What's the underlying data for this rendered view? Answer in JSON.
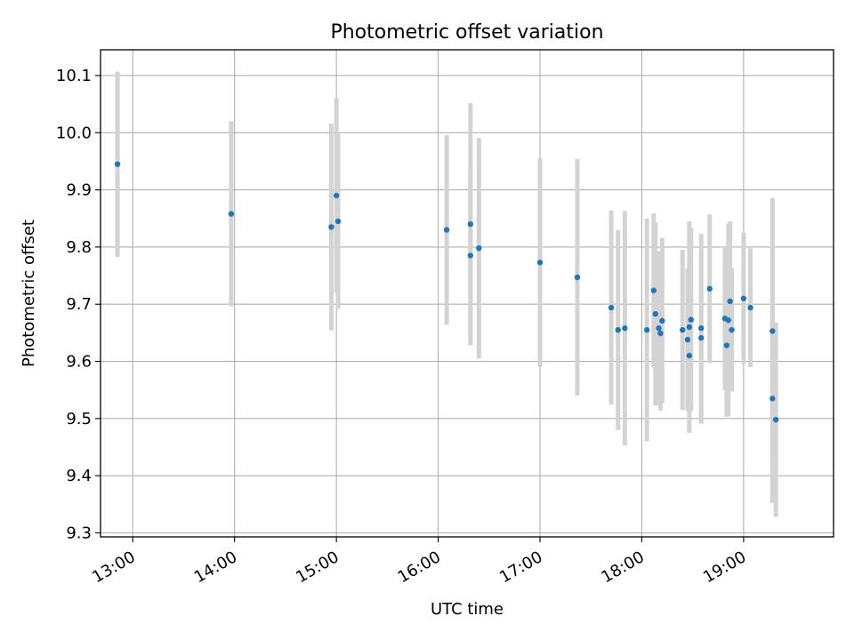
{
  "chart_data": {
    "type": "scatter",
    "title": "Photometric offset variation",
    "xlabel": "UTC time",
    "ylabel": "Photometric offset",
    "x_ticks": [
      "13:00",
      "14:00",
      "15:00",
      "16:00",
      "17:00",
      "18:00",
      "19:00"
    ],
    "y_ticks": [
      "9.3",
      "9.4",
      "9.5",
      "9.6",
      "9.7",
      "9.8",
      "9.9",
      "10.0",
      "10.1"
    ],
    "xlim": [
      "12:41",
      "19:53"
    ],
    "ylim": [
      9.293,
      10.145
    ],
    "grid": true,
    "errorbar_color": "#d3d3d3",
    "marker_color": "#1f77b4",
    "points": [
      {
        "x": "12:51",
        "y": 9.945,
        "err": 0.162
      },
      {
        "x": "13:58",
        "y": 9.858,
        "err": 0.162
      },
      {
        "x": "14:57",
        "y": 9.835,
        "err": 0.181
      },
      {
        "x": "15:00",
        "y": 9.89,
        "err": 0.17
      },
      {
        "x": "15:01",
        "y": 9.845,
        "err": 0.153
      },
      {
        "x": "16:05",
        "y": 9.83,
        "err": 0.166
      },
      {
        "x": "16:19",
        "y": 9.785,
        "err": 0.15
      },
      {
        "x": "16:19",
        "y": 9.84,
        "err": 0.212
      },
      {
        "x": "16:24",
        "y": 9.798,
        "err": 0.193
      },
      {
        "x": "17:00",
        "y": 9.773,
        "err": 0.183
      },
      {
        "x": "17:22",
        "y": 9.747,
        "err": 0.207
      },
      {
        "x": "17:42",
        "y": 9.694,
        "err": 0.17
      },
      {
        "x": "17:46",
        "y": 9.655,
        "err": 0.175
      },
      {
        "x": "17:50",
        "y": 9.658,
        "err": 0.205
      },
      {
        "x": "18:03",
        "y": 9.655,
        "err": 0.195
      },
      {
        "x": "18:07",
        "y": 9.724,
        "err": 0.135
      },
      {
        "x": "18:08",
        "y": 9.683,
        "err": 0.16
      },
      {
        "x": "18:10",
        "y": 9.658,
        "err": 0.135
      },
      {
        "x": "18:11",
        "y": 9.649,
        "err": 0.135
      },
      {
        "x": "18:12",
        "y": 9.671,
        "err": 0.145
      },
      {
        "x": "18:24",
        "y": 9.655,
        "err": 0.14
      },
      {
        "x": "18:27",
        "y": 9.638,
        "err": 0.125
      },
      {
        "x": "18:28",
        "y": 9.66,
        "err": 0.185
      },
      {
        "x": "18:28",
        "y": 9.61,
        "err": 0.135
      },
      {
        "x": "18:29",
        "y": 9.673,
        "err": 0.16
      },
      {
        "x": "18:35",
        "y": 9.641,
        "err": 0.15
      },
      {
        "x": "18:35",
        "y": 9.658,
        "err": 0.165
      },
      {
        "x": "18:40",
        "y": 9.727,
        "err": 0.13
      },
      {
        "x": "18:49",
        "y": 9.675,
        "err": 0.125
      },
      {
        "x": "18:50",
        "y": 9.628,
        "err": 0.125
      },
      {
        "x": "18:51",
        "y": 9.672,
        "err": 0.168
      },
      {
        "x": "18:52",
        "y": 9.705,
        "err": 0.14
      },
      {
        "x": "18:53",
        "y": 9.655,
        "err": 0.108
      },
      {
        "x": "19:00",
        "y": 9.71,
        "err": 0.115
      },
      {
        "x": "19:04",
        "y": 9.694,
        "err": 0.104
      },
      {
        "x": "19:17",
        "y": 9.653,
        "err": 0.233
      },
      {
        "x": "19:17",
        "y": 9.535,
        "err": 0.183
      },
      {
        "x": "19:19",
        "y": 9.498,
        "err": 0.17
      }
    ]
  }
}
